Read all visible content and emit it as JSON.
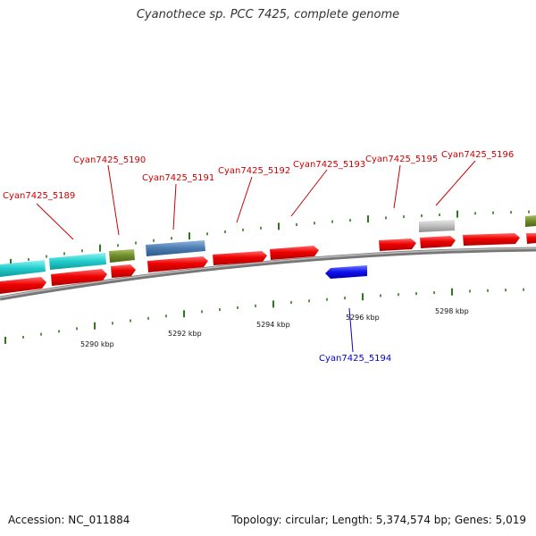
{
  "title": "Cyanothece sp. PCC 7425, complete genome",
  "footer": {
    "accession": "Accession: NC_011884",
    "summary": "Topology: circular; Length: 5,374,574 bp; Genes: 5,019"
  },
  "colors": {
    "forward_cds": "#ee0000",
    "label_top": "#cc0000",
    "label_bottom": "#0000cc",
    "reverse_cds": "#1010ee",
    "backbone": "#888888",
    "tick": "#2a7a1a"
  },
  "scale_labels": [
    "5290 kbp",
    "5292 kbp",
    "5294 kbp",
    "5296 kbp",
    "5298 kbp"
  ],
  "gene_labels": [
    "Cyan7425_5189",
    "Cyan7425_5190",
    "Cyan7425_5191",
    "Cyan7425_5192",
    "Cyan7425_5193",
    "Cyan7425_5195",
    "Cyan7425_5196",
    "Cyan7425_5194"
  ]
}
